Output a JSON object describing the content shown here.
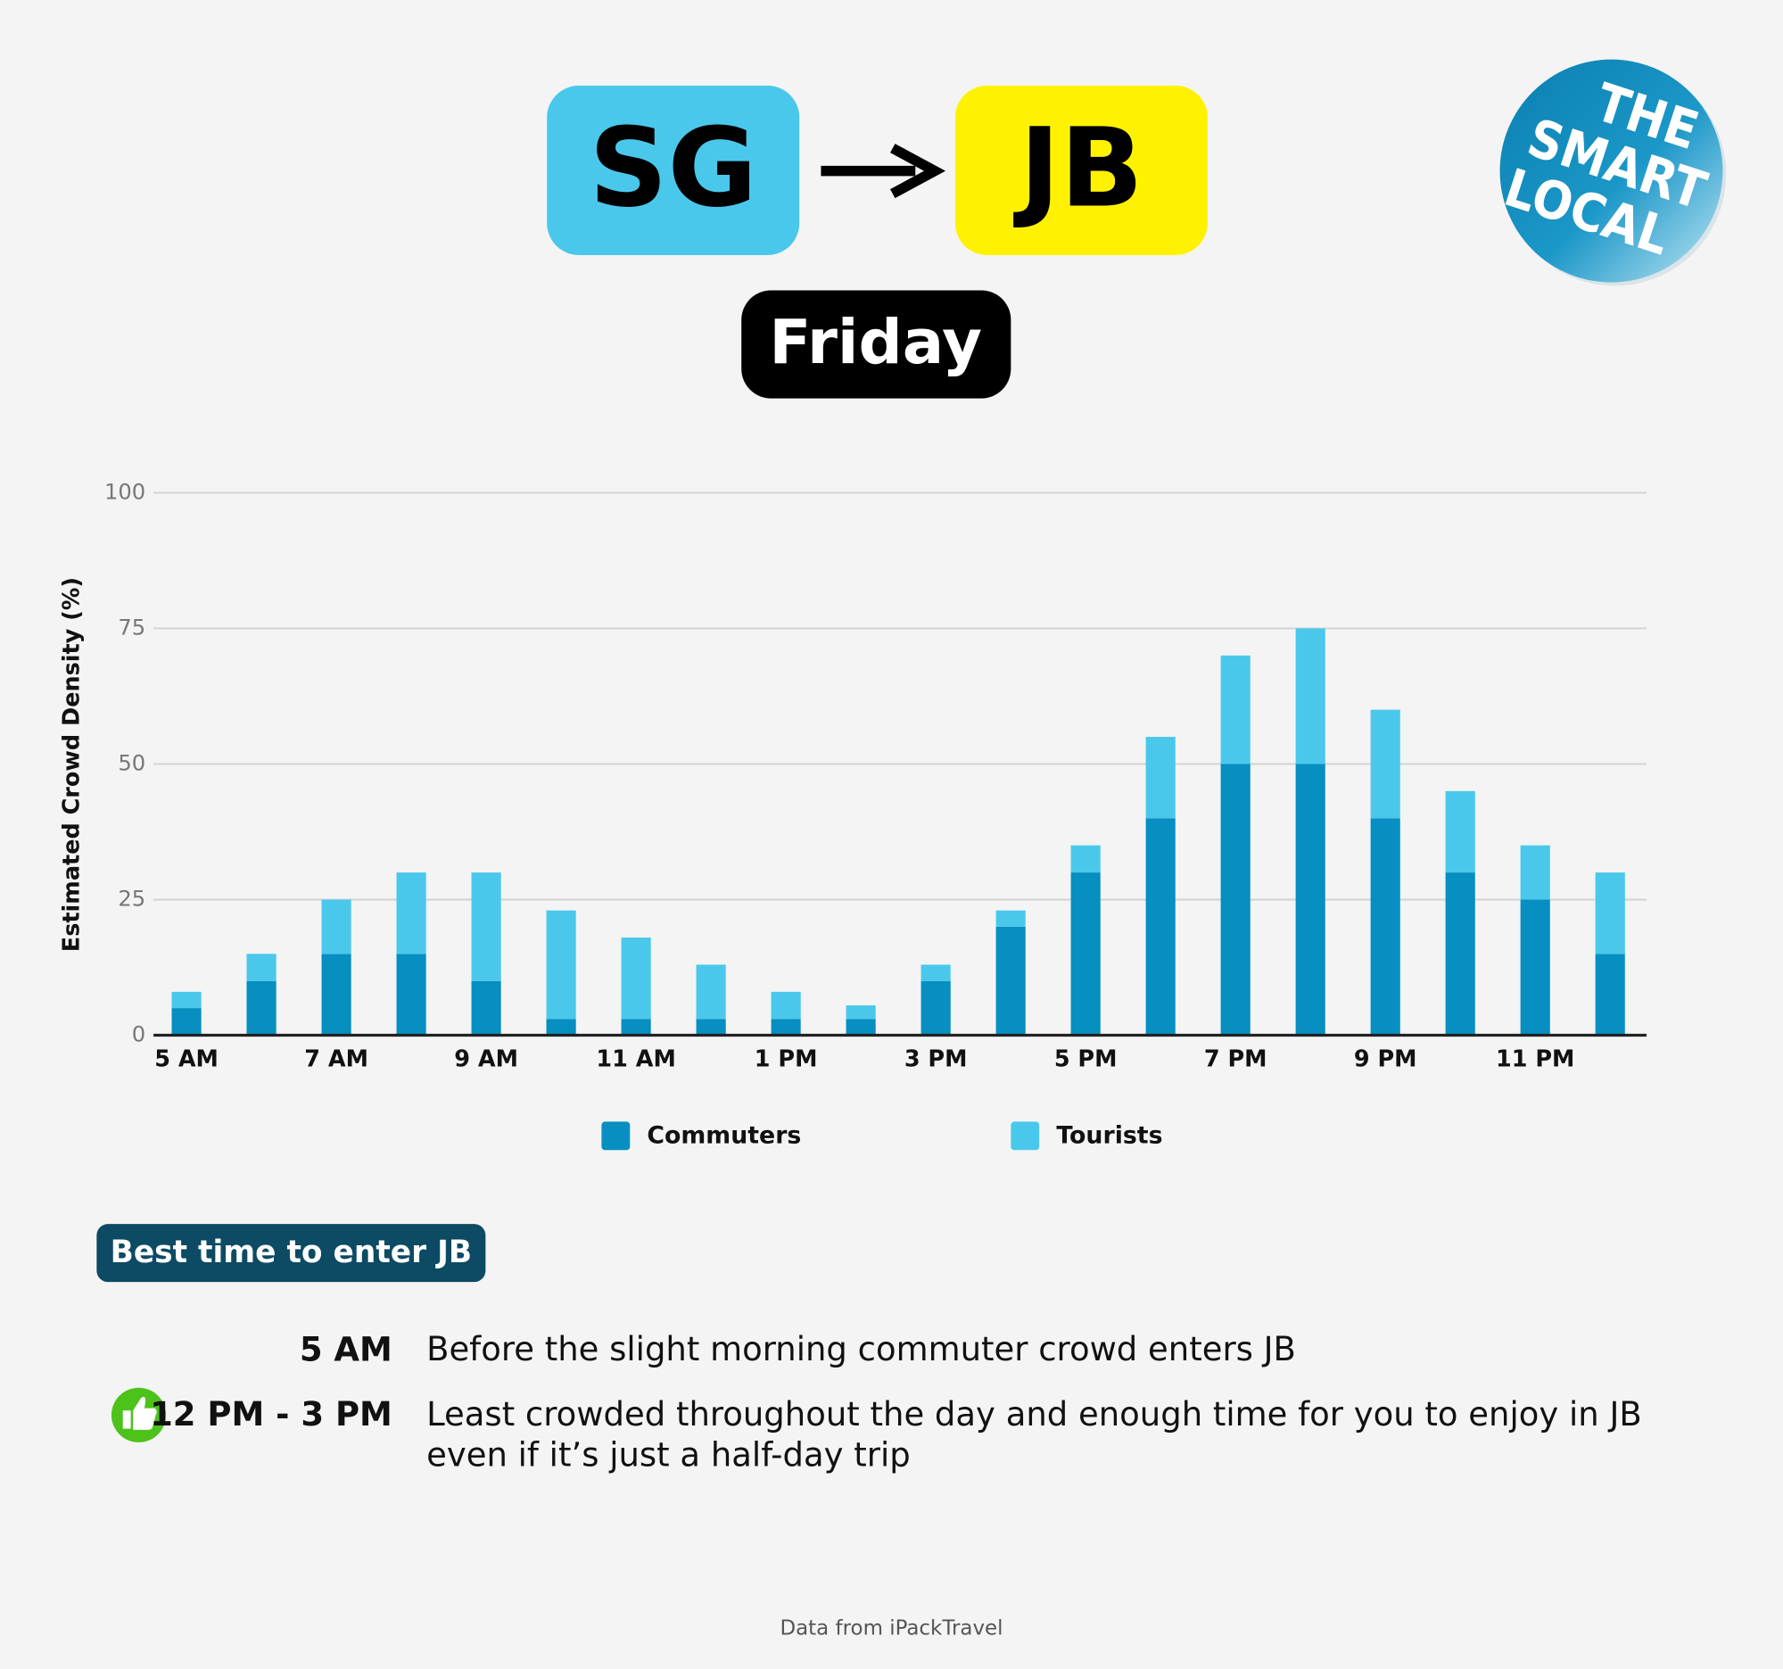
{
  "header": {
    "origin": "SG",
    "destination": "JB",
    "day": "Friday"
  },
  "logo": {
    "lines": [
      "THE",
      "SMART",
      "LOCAL"
    ]
  },
  "chart_data": {
    "type": "stacked-bar",
    "y_label": "Estimated Crowd Density (%)",
    "categories": [
      "5 AM",
      null,
      "7 AM",
      null,
      "9 AM",
      null,
      "11 AM",
      null,
      "1 PM",
      null,
      "3 PM",
      null,
      "5 PM",
      null,
      "7 PM",
      null,
      "9 PM",
      null,
      "11 PM",
      null
    ],
    "series": [
      {
        "name": "Commuters",
        "color": "#068fc0",
        "values": [
          5,
          10,
          15,
          15,
          10,
          3,
          3,
          3,
          3,
          3,
          10,
          20,
          30,
          40,
          50,
          50,
          40,
          30,
          25,
          15
        ]
      },
      {
        "name": "Tourists",
        "color": "#4ac8ec",
        "values": [
          3,
          5,
          10,
          15,
          20,
          20,
          15,
          10,
          5,
          2.5,
          3,
          3,
          5,
          15,
          20,
          25,
          20,
          15,
          10,
          15
        ]
      }
    ],
    "ylim": [
      0,
      100
    ],
    "yticks": [
      0,
      25,
      50,
      75,
      100
    ],
    "grid": true,
    "legend": "bottom"
  },
  "tips": {
    "title": "Best time to enter JB",
    "rows": [
      {
        "time": "5 AM",
        "text": "Before the slight morning commuter crowd enters JB"
      },
      {
        "time": "12 PM - 3 PM",
        "text": "Least crowded throughout the day and enough time for you to enjoy in JB even if it’s just a half-day trip"
      }
    ]
  },
  "source": "Data from iPackTravel"
}
